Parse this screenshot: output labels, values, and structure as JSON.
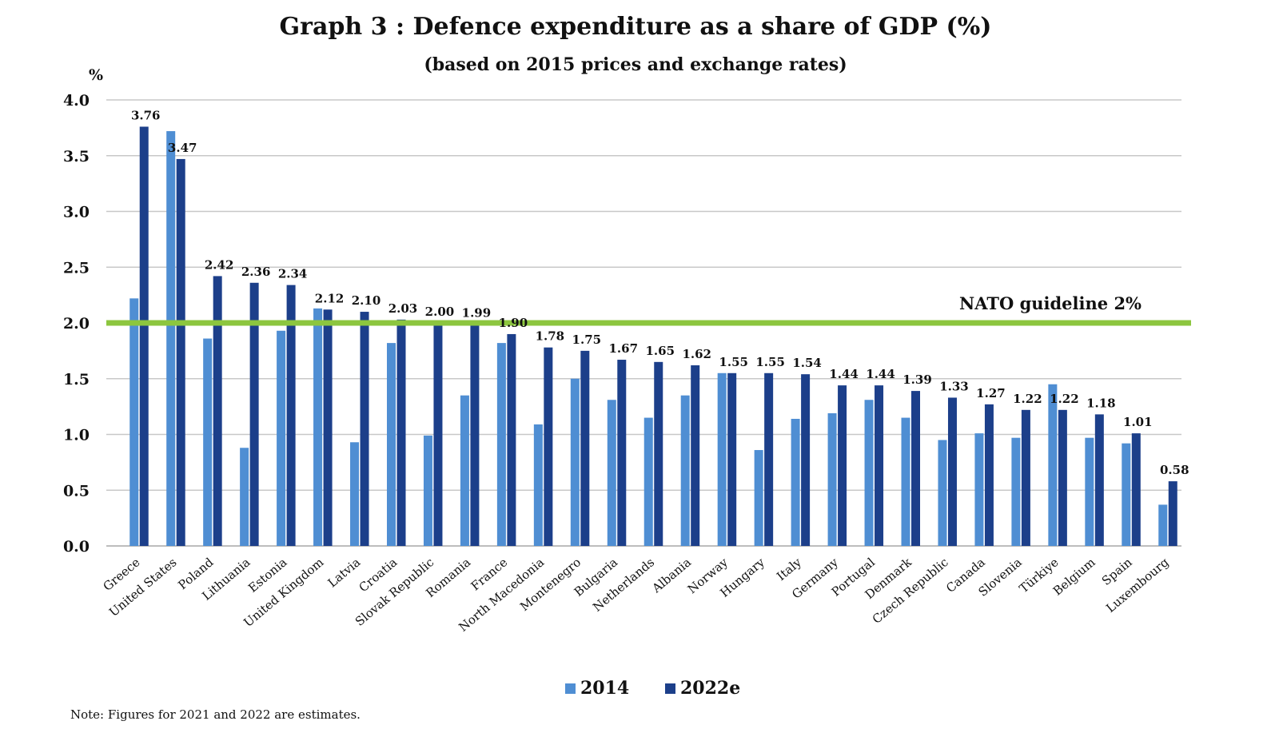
{
  "chart_data": {
    "type": "bar",
    "title": "Graph 3 : Defence expenditure as a share of GDP (%)",
    "subtitle": "(based on 2015 prices and exchange rates)",
    "ylabel": "%",
    "ylim": [
      0,
      4.0
    ],
    "yticks": [
      "0.0",
      "0.5",
      "1.0",
      "1.5",
      "2.0",
      "2.5",
      "3.0",
      "3.5",
      "4.0"
    ],
    "grid": true,
    "legend_position": "bottom-center",
    "categories": [
      "Greece",
      "United States",
      "Poland",
      "Lithuania",
      "Estonia",
      "United Kingdom",
      "Latvia",
      "Croatia",
      "Slovak Republic",
      "Romania",
      "France",
      "North Macedonia",
      "Montenegro",
      "Bulgaria",
      "Netherlands",
      "Albania",
      "Norway",
      "Hungary",
      "Italy",
      "Germany",
      "Portugal",
      "Denmark",
      "Czech Republic",
      "Canada",
      "Slovenia",
      "Türkiye",
      "Belgium",
      "Spain",
      "Luxembourg"
    ],
    "series": [
      {
        "name": "2014",
        "color": "#4f8ed3",
        "values": [
          2.22,
          3.72,
          1.86,
          0.88,
          1.93,
          2.13,
          0.93,
          1.82,
          0.99,
          1.35,
          1.82,
          1.09,
          1.5,
          1.31,
          1.15,
          1.35,
          1.55,
          0.86,
          1.14,
          1.19,
          1.31,
          1.15,
          0.95,
          1.01,
          0.97,
          1.45,
          0.97,
          0.92,
          0.37
        ]
      },
      {
        "name": "2022e",
        "color": "#1c3f8a",
        "values": [
          3.76,
          3.47,
          2.42,
          2.36,
          2.34,
          2.12,
          2.1,
          2.03,
          2.0,
          1.99,
          1.9,
          1.78,
          1.75,
          1.67,
          1.65,
          1.62,
          1.55,
          1.55,
          1.54,
          1.44,
          1.44,
          1.39,
          1.33,
          1.27,
          1.22,
          1.22,
          1.18,
          1.01,
          0.58
        ],
        "data_labels": [
          "3.76",
          "3.47",
          "2.42",
          "2.36",
          "2.34",
          "2.12",
          "2.10",
          "2.03",
          "2.00",
          "1.99",
          "1.90",
          "1.78",
          "1.75",
          "1.67",
          "1.65",
          "1.62",
          "1.55",
          "1.55",
          "1.54",
          "1.44",
          "1.44",
          "1.39",
          "1.33",
          "1.27",
          "1.22",
          "1.22",
          "1.18",
          "1.01",
          "0.58"
        ]
      }
    ],
    "reference_line": {
      "value": 2.0,
      "label": "NATO guideline 2%",
      "color": "#8cc63f"
    },
    "note": "Note: Figures for 2021 and 2022 are estimates."
  }
}
